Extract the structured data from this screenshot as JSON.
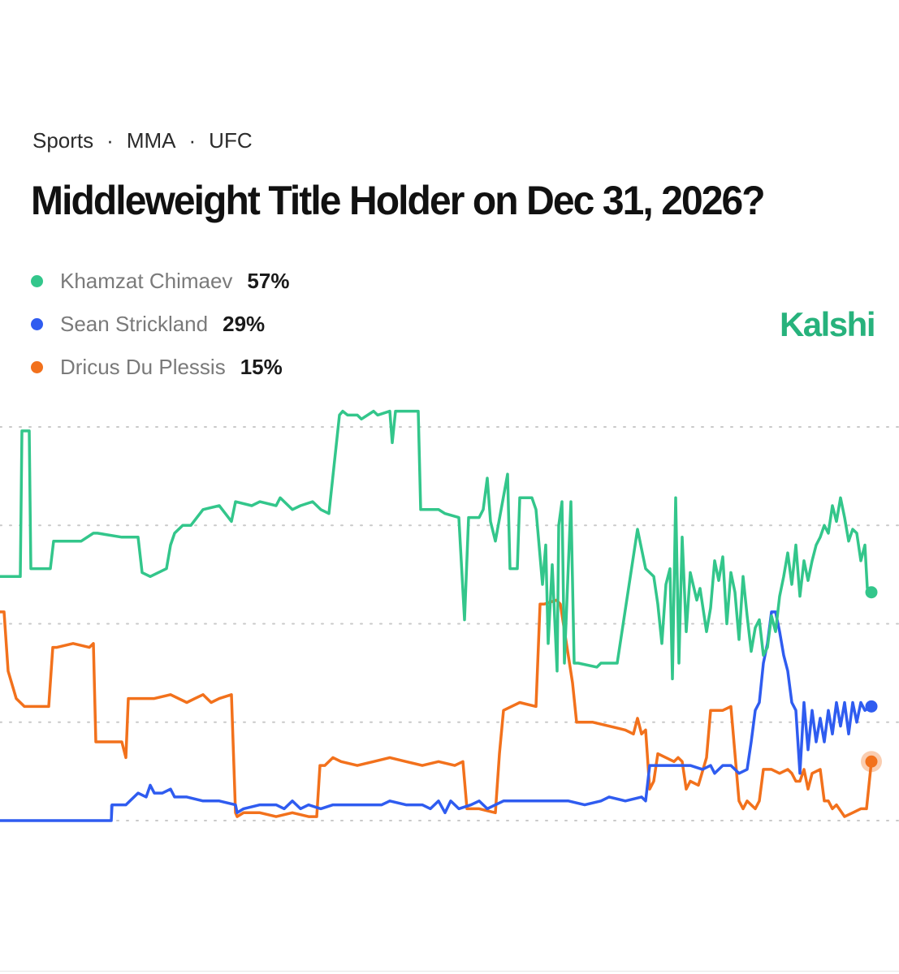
{
  "breadcrumb": [
    "Sports",
    "MMA",
    "UFC"
  ],
  "title": "Middleweight Title Holder on Dec 31, 2026?",
  "brand": "Kalshi",
  "legend": [
    {
      "name": "Khamzat Chimaev",
      "value": "57%",
      "color": "#33c68b"
    },
    {
      "name": "Sean Strickland",
      "value": "29%",
      "color": "#2f5cf0"
    },
    {
      "name": "Dricus Du Plessis",
      "value": "15%",
      "color": "#f2711c"
    }
  ],
  "chart_data": {
    "type": "line",
    "ylim": [
      0,
      100
    ],
    "gridlines": [
      0,
      25,
      50,
      75,
      100
    ],
    "grid": true,
    "x_index_range": [
      0,
      1073
    ],
    "series": [
      {
        "name": "Khamzat Chimaev",
        "color": "#33c68b",
        "x": [
          0,
          25,
          27,
          36,
          38,
          62,
          66,
          100,
          115,
          120,
          150,
          170,
          175,
          185,
          205,
          210,
          215,
          225,
          235,
          250,
          270,
          285,
          290,
          310,
          320,
          340,
          345,
          360,
          370,
          385,
          395,
          405,
          418,
          422,
          428,
          440,
          445,
          460,
          465,
          480,
          483,
          487,
          500,
          515,
          518,
          540,
          548,
          565,
          572,
          577,
          590,
          595,
          600,
          604,
          610,
          625,
          628,
          637,
          640,
          655,
          660,
          668,
          672,
          675,
          680,
          686,
          688,
          692,
          695,
          703,
          707,
          712,
          735,
          740,
          760,
          785,
          795,
          805,
          810,
          815,
          820,
          825,
          828,
          832,
          836,
          840,
          845,
          850,
          858,
          862,
          870,
          875,
          880,
          885,
          890,
          895,
          900,
          905,
          910,
          915,
          920,
          925,
          930,
          935,
          940,
          945,
          950,
          955,
          960,
          965,
          970,
          975,
          980,
          985,
          990,
          995,
          1000,
          1005,
          1010,
          1015,
          1020,
          1025,
          1030,
          1035,
          1040,
          1045,
          1050,
          1055,
          1060,
          1065,
          1068,
          1073
        ],
        "values": [
          62,
          62,
          99,
          99,
          64,
          64,
          71,
          71,
          73,
          73,
          72,
          72,
          63,
          62,
          64,
          70,
          73,
          75,
          75,
          79,
          80,
          76,
          81,
          80,
          81,
          80,
          82,
          79,
          80,
          81,
          79,
          78,
          103,
          104,
          103,
          103,
          102,
          104,
          103,
          104,
          96,
          104,
          104,
          104,
          79,
          79,
          78,
          77,
          51,
          77,
          77,
          79,
          87,
          76,
          71,
          88,
          64,
          64,
          82,
          82,
          79,
          60,
          70,
          45,
          65,
          38,
          75,
          81,
          40,
          81,
          40,
          40,
          39,
          40,
          40,
          74,
          64,
          62,
          55,
          45,
          60,
          64,
          36,
          82,
          40,
          72,
          48,
          63,
          56,
          59,
          48,
          54,
          66,
          61,
          67,
          50,
          63,
          58,
          46,
          62,
          52,
          43,
          49,
          51,
          42,
          44,
          52,
          48,
          57,
          62,
          68,
          60,
          70,
          57,
          66,
          61,
          66,
          70,
          72,
          75,
          73,
          80,
          76,
          82,
          77,
          71,
          74,
          73,
          66,
          70,
          59,
          58
        ]
      },
      {
        "name": "Sean Strickland",
        "color": "#2f5cf0",
        "x": [
          0,
          137,
          138,
          145,
          155,
          160,
          170,
          180,
          185,
          190,
          200,
          210,
          215,
          230,
          250,
          270,
          290,
          292,
          300,
          320,
          340,
          350,
          360,
          370,
          380,
          395,
          410,
          430,
          450,
          470,
          480,
          500,
          520,
          530,
          540,
          548,
          555,
          565,
          580,
          590,
          600,
          610,
          620,
          640,
          660,
          680,
          700,
          720,
          740,
          750,
          770,
          790,
          795,
          800,
          805,
          810,
          830,
          850,
          865,
          875,
          880,
          890,
          900,
          910,
          920,
          925,
          930,
          935,
          940,
          945,
          950,
          955,
          960,
          965,
          970,
          975,
          980,
          985,
          990,
          995,
          1000,
          1005,
          1010,
          1015,
          1020,
          1025,
          1030,
          1035,
          1040,
          1045,
          1050,
          1055,
          1060,
          1065,
          1073
        ],
        "values": [
          0,
          0,
          4,
          4,
          4,
          5,
          7,
          6,
          9,
          7,
          7,
          8,
          6,
          6,
          5,
          5,
          4,
          2,
          3,
          4,
          4,
          3,
          5,
          3,
          4,
          3,
          4,
          4,
          4,
          4,
          5,
          4,
          4,
          3,
          5,
          2,
          5,
          3,
          4,
          5,
          3,
          4,
          5,
          5,
          5,
          5,
          5,
          4,
          5,
          6,
          5,
          6,
          5,
          14,
          14,
          14,
          14,
          14,
          13,
          14,
          12,
          14,
          14,
          12,
          13,
          20,
          28,
          30,
          40,
          45,
          53,
          53,
          48,
          42,
          38,
          30,
          28,
          12,
          30,
          18,
          28,
          20,
          26,
          20,
          28,
          22,
          30,
          24,
          30,
          22,
          30,
          25,
          30,
          28,
          29
        ]
      },
      {
        "name": "Dricus Du Plessis",
        "color": "#f2711c",
        "x": [
          0,
          5,
          10,
          20,
          30,
          60,
          65,
          70,
          90,
          110,
          115,
          118,
          130,
          150,
          155,
          158,
          170,
          190,
          210,
          230,
          240,
          250,
          260,
          270,
          285,
          290,
          292,
          300,
          320,
          340,
          360,
          380,
          390,
          394,
          400,
          410,
          420,
          440,
          460,
          480,
          500,
          520,
          540,
          560,
          570,
          575,
          590,
          610,
          615,
          620,
          640,
          660,
          665,
          670,
          685,
          690,
          705,
          710,
          730,
          750,
          770,
          780,
          785,
          790,
          795,
          800,
          805,
          810,
          830,
          835,
          840,
          845,
          850,
          860,
          870,
          875,
          880,
          890,
          900,
          910,
          915,
          920,
          925,
          930,
          935,
          940,
          950,
          960,
          970,
          975,
          980,
          985,
          990,
          995,
          1000,
          1010,
          1015,
          1020,
          1025,
          1030,
          1040,
          1050,
          1060,
          1067,
          1073
        ],
        "values": [
          53,
          53,
          38,
          31,
          29,
          29,
          44,
          44,
          45,
          44,
          45,
          20,
          20,
          20,
          16,
          31,
          31,
          31,
          32,
          30,
          31,
          32,
          30,
          31,
          32,
          2,
          1,
          2,
          2,
          1,
          2,
          1,
          1,
          14,
          14,
          16,
          15,
          14,
          15,
          16,
          15,
          14,
          15,
          14,
          15,
          3,
          3,
          2,
          17,
          28,
          30,
          29,
          55,
          55,
          56,
          55,
          35,
          25,
          25,
          24,
          23,
          22,
          26,
          22,
          23,
          8,
          10,
          17,
          15,
          16,
          15,
          8,
          10,
          9,
          16,
          28,
          28,
          28,
          29,
          5,
          3,
          5,
          4,
          3,
          5,
          13,
          13,
          12,
          13,
          12,
          10,
          10,
          13,
          8,
          12,
          13,
          5,
          5,
          3,
          4,
          1,
          2,
          3,
          3,
          15
        ]
      }
    ]
  }
}
